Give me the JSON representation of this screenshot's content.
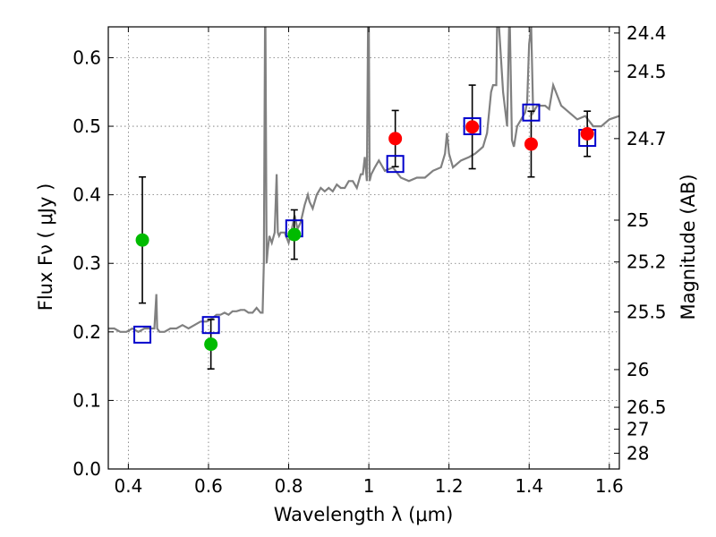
{
  "chart_data": {
    "type": "scatter",
    "xlabel": "Wavelength  λ (μm)",
    "ylabel": "Flux  Fν  ( μJy )",
    "y2label": "Magnitude (AB)",
    "xlim": [
      0.35,
      1.625
    ],
    "ylim": [
      0.0,
      0.645
    ],
    "grid": true,
    "x_ticks": [
      0.4,
      0.6,
      0.8,
      1.0,
      1.2,
      1.4,
      1.6
    ],
    "x_tick_labels": [
      "0.4",
      "0.6",
      "0.8",
      "1",
      "1.2",
      "1.4",
      "1.6"
    ],
    "y_ticks": [
      0.0,
      0.1,
      0.2,
      0.3,
      0.4,
      0.5,
      0.6
    ],
    "y_tick_labels": [
      "0.0",
      "0.1",
      "0.2",
      "0.3",
      "0.4",
      "0.5",
      "0.6"
    ],
    "right_ticks": [
      {
        "flux": 0.636,
        "label": "24.4"
      },
      {
        "flux": 0.58,
        "label": "24.5"
      },
      {
        "flux": 0.482,
        "label": "24.7"
      },
      {
        "flux": 0.363,
        "label": "25"
      },
      {
        "flux": 0.302,
        "label": "25.2"
      },
      {
        "flux": 0.229,
        "label": "25.5"
      },
      {
        "flux": 0.145,
        "label": "26"
      },
      {
        "flux": 0.09,
        "label": "26.5"
      },
      {
        "flux": 0.058,
        "label": "27"
      },
      {
        "flux": 0.023,
        "label": "28"
      }
    ],
    "colors": {
      "model": "#808080",
      "green": "#00bb00",
      "red": "#ff0000",
      "square": "#0000cc",
      "errorbar": "#000000"
    },
    "series": [
      {
        "kind": "model-spectrum",
        "color": "#808080",
        "x": [
          0.35,
          0.365,
          0.38,
          0.395,
          0.41,
          0.425,
          0.44,
          0.455,
          0.465,
          0.47,
          0.472,
          0.478,
          0.49,
          0.505,
          0.52,
          0.535,
          0.55,
          0.565,
          0.58,
          0.595,
          0.61,
          0.62,
          0.63,
          0.64,
          0.65,
          0.66,
          0.67,
          0.68,
          0.69,
          0.7,
          0.71,
          0.72,
          0.73,
          0.735,
          0.738,
          0.741,
          0.742,
          0.745,
          0.748,
          0.752,
          0.758,
          0.765,
          0.77,
          0.773,
          0.776,
          0.78,
          0.79,
          0.8,
          0.808,
          0.815,
          0.822,
          0.83,
          0.84,
          0.848,
          0.852,
          0.86,
          0.87,
          0.88,
          0.89,
          0.9,
          0.91,
          0.92,
          0.93,
          0.94,
          0.95,
          0.96,
          0.97,
          0.98,
          0.985,
          0.99,
          0.995,
          0.998,
          1.0,
          1.002,
          1.006,
          1.015,
          1.025,
          1.04,
          1.06,
          1.08,
          1.1,
          1.12,
          1.14,
          1.16,
          1.18,
          1.19,
          1.195,
          1.2,
          1.21,
          1.23,
          1.25,
          1.265,
          1.275,
          1.285,
          1.295,
          1.305,
          1.31,
          1.318,
          1.32,
          1.325,
          1.335,
          1.345,
          1.35,
          1.352,
          1.357,
          1.362,
          1.37,
          1.38,
          1.39,
          1.395,
          1.4,
          1.405,
          1.41,
          1.42,
          1.43,
          1.44,
          1.45,
          1.46,
          1.48,
          1.5,
          1.52,
          1.54,
          1.56,
          1.58,
          1.6,
          1.625
        ],
        "y": [
          0.205,
          0.205,
          0.2,
          0.2,
          0.205,
          0.2,
          0.205,
          0.205,
          0.205,
          0.255,
          0.205,
          0.2,
          0.2,
          0.205,
          0.205,
          0.21,
          0.205,
          0.21,
          0.215,
          0.215,
          0.22,
          0.225,
          0.225,
          0.228,
          0.225,
          0.23,
          0.23,
          0.232,
          0.232,
          0.228,
          0.228,
          0.235,
          0.228,
          0.228,
          0.3,
          0.645,
          0.645,
          0.3,
          0.32,
          0.34,
          0.33,
          0.345,
          0.43,
          0.345,
          0.34,
          0.345,
          0.345,
          0.33,
          0.35,
          0.37,
          0.35,
          0.36,
          0.385,
          0.4,
          0.39,
          0.38,
          0.4,
          0.41,
          0.405,
          0.41,
          0.405,
          0.415,
          0.41,
          0.41,
          0.42,
          0.42,
          0.41,
          0.43,
          0.43,
          0.455,
          0.42,
          0.645,
          0.645,
          0.42,
          0.43,
          0.44,
          0.45,
          0.435,
          0.44,
          0.425,
          0.42,
          0.425,
          0.425,
          0.435,
          0.44,
          0.46,
          0.49,
          0.46,
          0.44,
          0.45,
          0.455,
          0.46,
          0.465,
          0.47,
          0.49,
          0.55,
          0.56,
          0.56,
          0.645,
          0.645,
          0.55,
          0.5,
          0.645,
          0.645,
          0.48,
          0.47,
          0.5,
          0.51,
          0.52,
          0.535,
          0.62,
          0.645,
          0.52,
          0.53,
          0.53,
          0.53,
          0.525,
          0.56,
          0.53,
          0.52,
          0.51,
          0.515,
          0.5,
          0.5,
          0.51,
          0.515
        ]
      },
      {
        "kind": "green-points",
        "color": "#00bb00",
        "points": [
          {
            "x": 0.435,
            "y": 0.334,
            "err": 0.092
          },
          {
            "x": 0.606,
            "y": 0.182,
            "err": 0.036
          },
          {
            "x": 0.814,
            "y": 0.342,
            "err": 0.036
          }
        ]
      },
      {
        "kind": "red-points",
        "color": "#ff0000",
        "points": [
          {
            "x": 1.066,
            "y": 0.482,
            "err": 0.041
          },
          {
            "x": 1.258,
            "y": 0.499,
            "err": 0.061
          },
          {
            "x": 1.405,
            "y": 0.474,
            "err": 0.048
          },
          {
            "x": 1.545,
            "y": 0.489,
            "err": 0.033
          }
        ]
      },
      {
        "kind": "model-squares",
        "color": "#0000cc",
        "points": [
          {
            "x": 0.435,
            "y": 0.196
          },
          {
            "x": 0.606,
            "y": 0.21
          },
          {
            "x": 0.814,
            "y": 0.351
          },
          {
            "x": 1.066,
            "y": 0.445
          },
          {
            "x": 1.258,
            "y": 0.5
          },
          {
            "x": 1.405,
            "y": 0.52
          },
          {
            "x": 1.545,
            "y": 0.483
          }
        ]
      }
    ]
  }
}
